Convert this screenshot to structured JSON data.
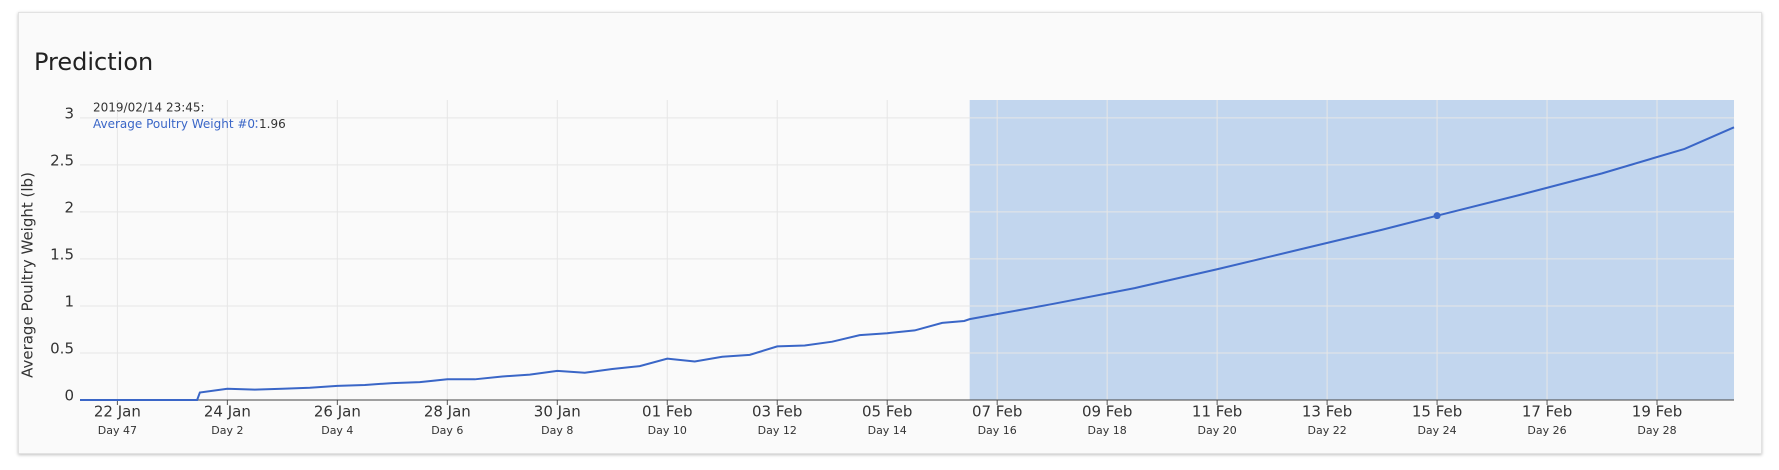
{
  "header": {
    "title": "Prediction"
  },
  "chart_data": {
    "type": "line",
    "ylabel": "Average Poultry Weight (lb)",
    "ylim": [
      0,
      3.19
    ],
    "yticks": [
      0,
      0.5,
      1,
      1.5,
      2,
      2.5,
      3
    ],
    "xlim": [
      -0.68,
      29.4
    ],
    "xticks": [
      {
        "value": 0,
        "label": "22 Jan"
      },
      {
        "value": 2,
        "label": "24 Jan"
      },
      {
        "value": 4,
        "label": "26 Jan"
      },
      {
        "value": 6,
        "label": "28 Jan"
      },
      {
        "value": 8,
        "label": "30 Jan"
      },
      {
        "value": 10,
        "label": "01 Feb"
      },
      {
        "value": 12,
        "label": "03 Feb"
      },
      {
        "value": 14,
        "label": "05 Feb"
      },
      {
        "value": 16,
        "label": "07 Feb"
      },
      {
        "value": 18,
        "label": "09 Feb"
      },
      {
        "value": 20,
        "label": "11 Feb"
      },
      {
        "value": 22,
        "label": "13 Feb"
      },
      {
        "value": 24,
        "label": "15 Feb"
      },
      {
        "value": 26,
        "label": "17 Feb"
      },
      {
        "value": 28,
        "label": "19 Feb"
      }
    ],
    "xtick_sublabels": [
      "Day 47",
      "Day 2",
      "Day 4",
      "Day 6",
      "Day 8",
      "Day 10",
      "Day 12",
      "Day 14",
      "Day 16",
      "Day 18",
      "Day 20",
      "Day 22",
      "Day 24",
      "Day 26",
      "Day 28"
    ],
    "grid": true,
    "forecast_start": 15.5,
    "forecast_color": "#c2d6ee",
    "series": [
      {
        "name": "Average Poultry Weight #0",
        "color": "#3a66c7",
        "x": [
          -0.68,
          1.45,
          1.5,
          2,
          2.5,
          3,
          3.5,
          4,
          4.5,
          5,
          5.5,
          6,
          6.5,
          7,
          7.5,
          8,
          8.5,
          9,
          9.5,
          10,
          10.5,
          11,
          11.5,
          12,
          12.5,
          13,
          13.5,
          14,
          14.5,
          15,
          15.4,
          15.5,
          17,
          18.5,
          20,
          21.5,
          23,
          24,
          25.5,
          27,
          28.5,
          29.4
        ],
        "values": [
          0,
          0,
          0.08,
          0.12,
          0.11,
          0.12,
          0.13,
          0.15,
          0.16,
          0.18,
          0.19,
          0.22,
          0.22,
          0.25,
          0.27,
          0.31,
          0.29,
          0.33,
          0.36,
          0.44,
          0.41,
          0.46,
          0.48,
          0.57,
          0.58,
          0.62,
          0.69,
          0.71,
          0.74,
          0.82,
          0.84,
          0.86,
          1.02,
          1.19,
          1.39,
          1.6,
          1.81,
          1.96,
          2.18,
          2.41,
          2.67,
          2.9
        ]
      }
    ],
    "tooltip": {
      "time": "2019/02/14 23:45:",
      "x": 24,
      "value": 1.96
    }
  }
}
